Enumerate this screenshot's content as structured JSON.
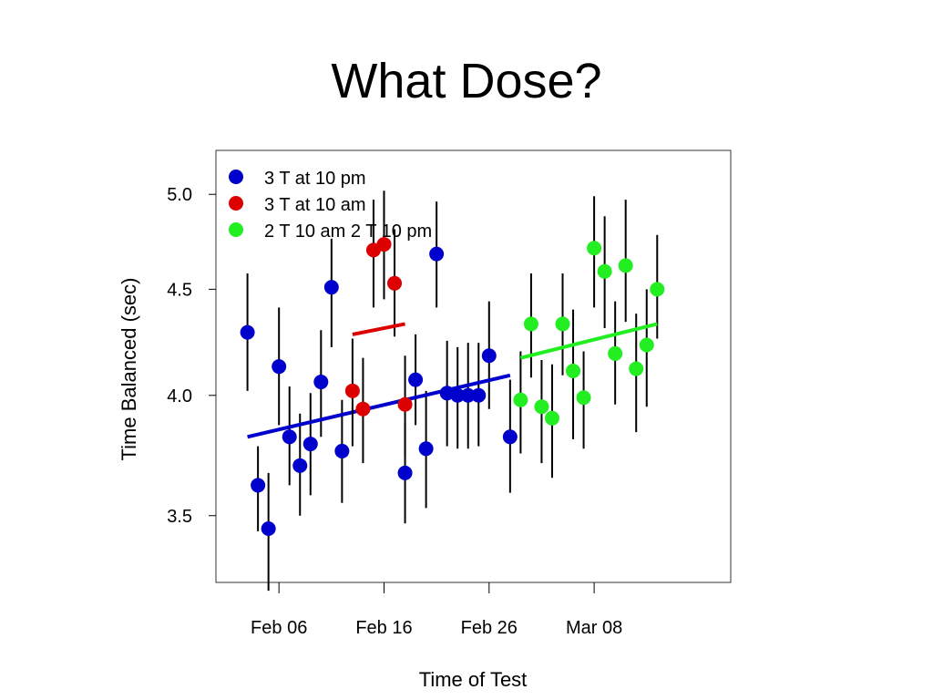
{
  "slide": {
    "title": "What Dose?"
  },
  "chart_data": {
    "type": "scatter",
    "title": "",
    "xlabel": "Time of Test",
    "ylabel": "Time Balanced (sec)",
    "x_ticks": [
      "Feb 06",
      "Feb 16",
      "Feb 26",
      "Mar 08"
    ],
    "y_ticks": [
      3.5,
      4.0,
      4.5,
      5.0
    ],
    "xlim": [
      "2009-01-31",
      "2009-03-21"
    ],
    "ylim": [
      3.25,
      5.25
    ],
    "legend_position": "top-left",
    "error_bars": true,
    "series": [
      {
        "name": "3 T at 10 pm",
        "color": "#0000cc",
        "points": [
          {
            "x": "2009-02-03",
            "y": 4.29,
            "lo": 4.02,
            "hi": 4.58
          },
          {
            "x": "2009-02-04",
            "y": 3.62,
            "lo": 3.44,
            "hi": 3.78
          },
          {
            "x": "2009-02-05",
            "y": 3.45,
            "lo": 3.22,
            "hi": 3.67
          },
          {
            "x": "2009-02-06",
            "y": 4.13,
            "lo": 3.87,
            "hi": 4.41
          },
          {
            "x": "2009-02-07",
            "y": 3.82,
            "lo": 3.62,
            "hi": 4.04
          },
          {
            "x": "2009-02-08",
            "y": 3.7,
            "lo": 3.5,
            "hi": 3.92
          },
          {
            "x": "2009-02-09",
            "y": 3.79,
            "lo": 3.58,
            "hi": 4.01
          },
          {
            "x": "2009-02-10",
            "y": 4.06,
            "lo": 3.82,
            "hi": 4.3
          },
          {
            "x": "2009-02-11",
            "y": 4.51,
            "lo": 4.22,
            "hi": 4.76
          },
          {
            "x": "2009-02-12",
            "y": 3.76,
            "lo": 3.55,
            "hi": 3.98
          },
          {
            "x": "2009-02-18",
            "y": 3.67,
            "lo": 3.47,
            "hi": 3.88
          },
          {
            "x": "2009-02-19",
            "y": 4.07,
            "lo": 3.87,
            "hi": 4.28
          },
          {
            "x": "2009-02-20",
            "y": 3.77,
            "lo": 3.53,
            "hi": 4.02
          },
          {
            "x": "2009-02-21",
            "y": 4.68,
            "lo": 4.41,
            "hi": 4.96
          },
          {
            "x": "2009-02-22",
            "y": 4.01,
            "lo": 3.78,
            "hi": 4.25
          },
          {
            "x": "2009-02-23",
            "y": 4.0,
            "lo": 3.77,
            "hi": 4.22
          },
          {
            "x": "2009-02-24",
            "y": 4.0,
            "lo": 3.77,
            "hi": 4.24
          },
          {
            "x": "2009-02-25",
            "y": 4.0,
            "lo": 3.78,
            "hi": 4.24
          },
          {
            "x": "2009-02-26",
            "y": 4.18,
            "lo": 3.94,
            "hi": 4.44
          },
          {
            "x": "2009-02-28",
            "y": 3.82,
            "lo": 3.59,
            "hi": 4.07
          }
        ],
        "fit": [
          {
            "x": "2009-02-03",
            "y": 3.82
          },
          {
            "x": "2009-02-28",
            "y": 4.09
          }
        ]
      },
      {
        "name": "3 T at 10 am",
        "color": "#dd0000",
        "points": [
          {
            "x": "2009-02-13",
            "y": 4.02,
            "lo": 3.78,
            "hi": 4.26
          },
          {
            "x": "2009-02-14",
            "y": 3.94,
            "lo": 3.71,
            "hi": 4.17
          },
          {
            "x": "2009-02-15",
            "y": 4.7,
            "lo": 4.41,
            "hi": 4.97
          },
          {
            "x": "2009-02-16",
            "y": 4.73,
            "lo": 4.45,
            "hi": 5.02
          },
          {
            "x": "2009-02-17",
            "y": 4.53,
            "lo": 4.27,
            "hi": 4.81
          },
          {
            "x": "2009-02-18",
            "y": 3.96,
            "lo": 3.74,
            "hi": 4.18
          }
        ],
        "fit": [
          {
            "x": "2009-02-13",
            "y": 4.28
          },
          {
            "x": "2009-02-18",
            "y": 4.33
          }
        ]
      },
      {
        "name": "2 T 10 am 2 T 10 pm",
        "color": "#22ee22",
        "points": [
          {
            "x": "2009-03-01",
            "y": 3.98,
            "lo": 3.75,
            "hi": 4.2
          },
          {
            "x": "2009-03-02",
            "y": 4.33,
            "lo": 4.08,
            "hi": 4.58
          },
          {
            "x": "2009-03-03",
            "y": 3.95,
            "lo": 3.71,
            "hi": 4.16
          },
          {
            "x": "2009-03-04",
            "y": 3.9,
            "lo": 3.65,
            "hi": 4.14
          },
          {
            "x": "2009-03-05",
            "y": 4.33,
            "lo": 4.09,
            "hi": 4.58
          },
          {
            "x": "2009-03-06",
            "y": 4.11,
            "lo": 3.81,
            "hi": 4.4
          },
          {
            "x": "2009-03-07",
            "y": 3.99,
            "lo": 3.77,
            "hi": 4.2
          },
          {
            "x": "2009-03-08",
            "y": 4.71,
            "lo": 4.41,
            "hi": 4.99
          },
          {
            "x": "2009-03-09",
            "y": 4.59,
            "lo": 4.31,
            "hi": 4.88
          },
          {
            "x": "2009-03-10",
            "y": 4.19,
            "lo": 3.96,
            "hi": 4.44
          },
          {
            "x": "2009-03-11",
            "y": 4.62,
            "lo": 4.34,
            "hi": 4.97
          },
          {
            "x": "2009-03-12",
            "y": 4.12,
            "lo": 3.84,
            "hi": 4.38
          },
          {
            "x": "2009-03-13",
            "y": 4.23,
            "lo": 3.95,
            "hi": 4.5
          },
          {
            "x": "2009-03-14",
            "y": 4.5,
            "lo": 4.26,
            "hi": 4.78
          }
        ],
        "fit": [
          {
            "x": "2009-03-01",
            "y": 4.17
          },
          {
            "x": "2009-03-14",
            "y": 4.33
          }
        ]
      }
    ]
  }
}
